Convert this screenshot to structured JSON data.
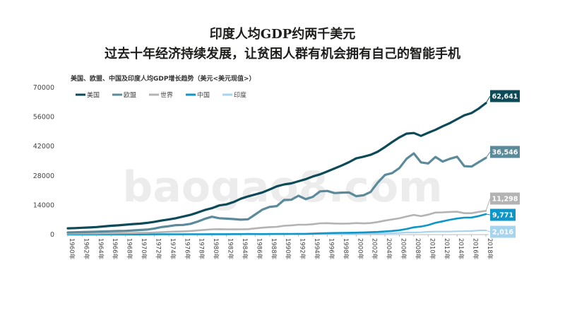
{
  "header": {
    "title_line1": "印度人均GDP约两千美元",
    "title_line2": "过去十年经济持续发展，让贫困人群有机会拥有自己的智能手机"
  },
  "watermark": "baogao8.com",
  "chart_data": {
    "type": "line",
    "title": "美国、欧盟、中国及印度人均GDP增长趋势（美元<美元现值>）",
    "xlabel": "",
    "ylabel": "",
    "ylim": [
      0,
      70000
    ],
    "yticks": [
      0,
      14000,
      28000,
      42000,
      56000,
      70000
    ],
    "ytick_labels": [
      "0",
      "14000",
      "28000",
      "42000",
      "56000",
      "70000"
    ],
    "xtick_labels": [
      "1960年",
      "1962年",
      "1964年",
      "1966年",
      "1968年",
      "1970年",
      "1972年",
      "1974年",
      "1976年",
      "1978年",
      "1980年",
      "1982年",
      "1984年",
      "1986年",
      "1988年",
      "1990年",
      "1992年",
      "1994年",
      "1996年",
      "1998年",
      "2000年",
      "2002年",
      "2004年",
      "2006年",
      "2008年",
      "2010年",
      "2012年",
      "2014年",
      "2016年",
      "2018年"
    ],
    "x": [
      1960,
      1961,
      1962,
      1963,
      1964,
      1965,
      1966,
      1967,
      1968,
      1969,
      1970,
      1971,
      1972,
      1973,
      1974,
      1975,
      1976,
      1977,
      1978,
      1979,
      1980,
      1981,
      1982,
      1983,
      1984,
      1985,
      1986,
      1987,
      1988,
      1989,
      1990,
      1991,
      1992,
      1993,
      1994,
      1995,
      1996,
      1997,
      1998,
      1999,
      2000,
      2001,
      2002,
      2003,
      2004,
      2005,
      2006,
      2007,
      2008,
      2009,
      2010,
      2011,
      2012,
      2013,
      2014,
      2015,
      2016,
      2017,
      2018
    ],
    "grid": false,
    "legend_position": "top-left",
    "series": [
      {
        "name": "美国",
        "color": "#0d4a57",
        "end_label": "62,641",
        "values": [
          3000,
          3100,
          3250,
          3400,
          3600,
          3900,
          4200,
          4400,
          4700,
          5000,
          5200,
          5600,
          6100,
          6700,
          7200,
          7800,
          8600,
          9400,
          10500,
          11700,
          12600,
          13900,
          14400,
          15500,
          17100,
          18200,
          19100,
          20100,
          21500,
          23000,
          23900,
          24400,
          25400,
          26400,
          27700,
          28700,
          30100,
          31500,
          32900,
          34500,
          36300,
          37100,
          38000,
          39500,
          41700,
          44100,
          46300,
          48100,
          48400,
          47000,
          48500,
          49900,
          51600,
          53100,
          55000,
          56800,
          57900,
          60000,
          62641
        ]
      },
      {
        "name": "欧盟",
        "color": "#5b8a9b",
        "end_label": "36,546",
        "values": [
          1000,
          1100,
          1200,
          1300,
          1400,
          1500,
          1600,
          1700,
          1800,
          2000,
          2200,
          2400,
          2900,
          3600,
          4000,
          4500,
          4600,
          5100,
          6200,
          7500,
          8500,
          7800,
          7600,
          7400,
          7100,
          7300,
          9600,
          11900,
          13200,
          13600,
          16500,
          16600,
          18500,
          16900,
          18000,
          20600,
          20800,
          19800,
          20000,
          20100,
          18300,
          18700,
          20300,
          24800,
          28400,
          29300,
          31700,
          36100,
          38700,
          34400,
          33900,
          37000,
          34800,
          36100,
          37100,
          32600,
          32400,
          34500,
          36546
        ]
      },
      {
        "name": "世界",
        "color": "#b3b3b3",
        "end_label": "11,298",
        "values": [
          450,
          470,
          490,
          520,
          550,
          590,
          620,
          650,
          680,
          740,
          800,
          860,
          960,
          1150,
          1320,
          1450,
          1550,
          1720,
          1970,
          2250,
          2540,
          2600,
          2510,
          2500,
          2540,
          2600,
          2950,
          3300,
          3580,
          3710,
          4200,
          4420,
          4720,
          4700,
          4950,
          5400,
          5440,
          5300,
          5200,
          5300,
          5470,
          5350,
          5500,
          6000,
          6680,
          7230,
          7790,
          8620,
          9380,
          8800,
          9540,
          10500,
          10600,
          10800,
          10900,
          10200,
          10200,
          10800,
          11298
        ]
      },
      {
        "name": "中国",
        "color": "#0e96c8",
        "end_label": "9,771",
        "values": [
          90,
          75,
          70,
          73,
          85,
          98,
          104,
          96,
          91,
          100,
          113,
          119,
          132,
          157,
          160,
          178,
          165,
          185,
          156,
          183,
          195,
          197,
          203,
          225,
          251,
          294,
          281,
          252,
          284,
          311,
          318,
          333,
          366,
          377,
          473,
          610,
          709,
          782,
          829,
          873,
          959,
          1053,
          1149,
          1289,
          1509,
          1753,
          2099,
          2694,
          3468,
          3832,
          4550,
          5618,
          6317,
          7051,
          7679,
          8067,
          8148,
          8827,
          9771
        ]
      },
      {
        "name": "印度",
        "color": "#a6d3ee",
        "end_label": "2,016",
        "values": [
          82,
          85,
          89,
          101,
          115,
          119,
          90,
          96,
          99,
          107,
          112,
          118,
          122,
          144,
          163,
          158,
          161,
          186,
          206,
          224,
          267,
          271,
          275,
          291,
          277,
          297,
          310,
          340,
          355,
          347,
          368,
          303,
          317,
          301,
          346,
          374,
          400,
          415,
          413,
          442,
          443,
          452,
          471,
          546,
          627,
          714,
          806,
          1028,
          998,
          1102,
          1358,
          1458,
          1444,
          1450,
          1574,
          1606,
          1732,
          1981,
          2016
        ]
      }
    ]
  }
}
